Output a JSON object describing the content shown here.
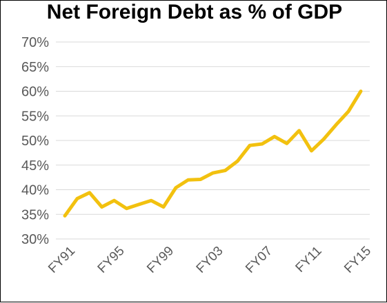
{
  "chart_data": {
    "type": "line",
    "title": "Net Foreign Debt as % of GDP",
    "xlabel": "",
    "ylabel": "",
    "x": [
      "FY91",
      "FY92",
      "FY93",
      "FY94",
      "FY95",
      "FY96",
      "FY97",
      "FY98",
      "FY99",
      "FY00",
      "FY01",
      "FY02",
      "FY03",
      "FY04",
      "FY05",
      "FY06",
      "FY07",
      "FY08",
      "FY09",
      "FY10",
      "FY11",
      "FY12",
      "FY13",
      "FY14",
      "FY15"
    ],
    "x_tick_labels": [
      "FY91",
      "FY95",
      "FY99",
      "FY03",
      "FY07",
      "FY11",
      "FY15"
    ],
    "series": [
      {
        "values": [
          34.7,
          38.2,
          39.4,
          36.5,
          37.8,
          36.2,
          37.0,
          37.8,
          36.5,
          40.4,
          42.0,
          42.1,
          43.4,
          43.9,
          45.8,
          49.0,
          49.3,
          50.8,
          49.4,
          52.0,
          47.9,
          50.3,
          53.2,
          55.9,
          60.0
        ],
        "color": "#f2c10f"
      }
    ],
    "ylim": [
      30,
      70
    ],
    "y_tick_labels": [
      "70%",
      "65%",
      "60%",
      "55%",
      "50%",
      "45%",
      "40%",
      "35%",
      "30%"
    ],
    "grid": true,
    "legend": "none"
  }
}
